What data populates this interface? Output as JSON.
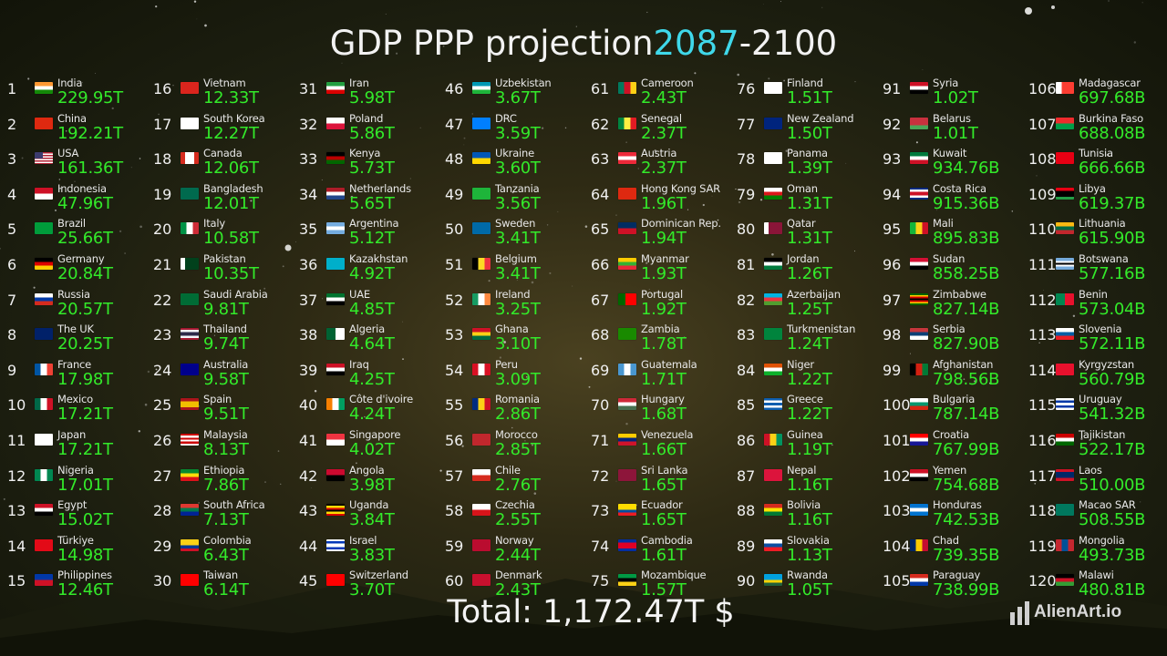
{
  "title": {
    "prefix": "GDP PPP projection",
    "year": "2087",
    "suffix": "-2100"
  },
  "total": "Total: 1,172.47T $",
  "logo": "AlienArt.io",
  "countries": [
    {
      "r": "1",
      "n": "India",
      "v": "229.95T",
      "f": "h:#ff9933,#ffffff,#138808"
    },
    {
      "r": "2",
      "n": "China",
      "v": "192.21T",
      "f": "s:#de2910"
    },
    {
      "r": "3",
      "n": "USA",
      "v": "161.36T",
      "f": "us"
    },
    {
      "r": "4",
      "n": "Indonesia",
      "v": "47.96T",
      "f": "h:#ce1126,#ffffff"
    },
    {
      "r": "5",
      "n": "Brazil",
      "v": "25.66T",
      "f": "s:#009c3b"
    },
    {
      "r": "6",
      "n": "Germany",
      "v": "20.84T",
      "f": "h:#000000,#dd0000,#ffce00"
    },
    {
      "r": "7",
      "n": "Russia",
      "v": "20.57T",
      "f": "h:#ffffff,#0039a6,#d52b1e"
    },
    {
      "r": "8",
      "n": "The UK",
      "v": "20.25T",
      "f": "s:#012169"
    },
    {
      "r": "9",
      "n": "France",
      "v": "17.98T",
      "f": "v:#0055a4,#ffffff,#ef4135"
    },
    {
      "r": "10",
      "n": "Mexico",
      "v": "17.21T",
      "f": "v:#006847,#ffffff,#ce1126"
    },
    {
      "r": "11",
      "n": "Japan",
      "v": "17.21T",
      "f": "s:#ffffff"
    },
    {
      "r": "12",
      "n": "Nigeria",
      "v": "17.01T",
      "f": "v:#008751,#ffffff,#008751"
    },
    {
      "r": "13",
      "n": "Egypt",
      "v": "15.02T",
      "f": "h:#ce1126,#ffffff,#000000"
    },
    {
      "r": "14",
      "n": "Türkiye",
      "v": "14.98T",
      "f": "s:#e30a17"
    },
    {
      "r": "15",
      "n": "Philippines",
      "v": "12.46T",
      "f": "h:#0038a8,#ce1126"
    },
    {
      "r": "16",
      "n": "Vietnam",
      "v": "12.33T",
      "f": "s:#da251d"
    },
    {
      "r": "17",
      "n": "South Korea",
      "v": "12.27T",
      "f": "s:#ffffff"
    },
    {
      "r": "18",
      "n": "Canada",
      "v": "12.06T",
      "f": "v:#d52b1e,#ffffff,#ffffff,#d52b1e"
    },
    {
      "r": "19",
      "n": "Bangladesh",
      "v": "12.01T",
      "f": "s:#006a4e"
    },
    {
      "r": "20",
      "n": "Italy",
      "v": "10.58T",
      "f": "v:#009246,#ffffff,#ce2b37"
    },
    {
      "r": "21",
      "n": "Pakistan",
      "v": "10.35T",
      "f": "v:#ffffff,#01411c,#01411c,#01411c"
    },
    {
      "r": "22",
      "n": "Saudi Arabia",
      "v": "9.81T",
      "f": "s:#006c35"
    },
    {
      "r": "23",
      "n": "Thailand",
      "v": "9.74T",
      "f": "h:#a51931,#f4f5f8,#2d2a4a,#2d2a4a,#f4f5f8,#a51931"
    },
    {
      "r": "24",
      "n": "Australia",
      "v": "9.58T",
      "f": "s:#00008b"
    },
    {
      "r": "25",
      "n": "Spain",
      "v": "9.51T",
      "f": "h:#aa151b,#f1bf00,#f1bf00,#aa151b"
    },
    {
      "r": "26",
      "n": "Malaysia",
      "v": "8.13T",
      "f": "h:#cc0001,#ffffff,#cc0001,#ffffff,#cc0001,#ffffff"
    },
    {
      "r": "27",
      "n": "Ethiopia",
      "v": "7.86T",
      "f": "h:#078930,#fcdd09,#da121a"
    },
    {
      "r": "28",
      "n": "South Africa",
      "v": "7.13T",
      "f": "h:#de3831,#007a4d,#002395"
    },
    {
      "r": "29",
      "n": "Colombia",
      "v": "6.43T",
      "f": "h:#fcd116,#fcd116,#003893,#ce1126"
    },
    {
      "r": "30",
      "n": "Taiwan",
      "v": "6.14T",
      "f": "s:#fe0000"
    },
    {
      "r": "31",
      "n": "Iran",
      "v": "5.98T",
      "f": "h:#239f40,#ffffff,#da0000"
    },
    {
      "r": "32",
      "n": "Poland",
      "v": "5.86T",
      "f": "h:#ffffff,#dc143c"
    },
    {
      "r": "33",
      "n": "Kenya",
      "v": "5.73T",
      "f": "h:#000000,#bb0000,#006600"
    },
    {
      "r": "34",
      "n": "Netherlands",
      "v": "5.65T",
      "f": "h:#ae1c28,#ffffff,#21468b"
    },
    {
      "r": "35",
      "n": "Argentina",
      "v": "5.12T",
      "f": "h:#74acdf,#ffffff,#74acdf"
    },
    {
      "r": "36",
      "n": "Kazakhstan",
      "v": "4.92T",
      "f": "s:#00afca"
    },
    {
      "r": "37",
      "n": "UAE",
      "v": "4.85T",
      "f": "h:#00732f,#ffffff,#000000"
    },
    {
      "r": "38",
      "n": "Algeria",
      "v": "4.64T",
      "f": "v:#006233,#ffffff"
    },
    {
      "r": "39",
      "n": "Iraq",
      "v": "4.25T",
      "f": "h:#ce1126,#ffffff,#000000"
    },
    {
      "r": "40",
      "n": "Côte d'ivoire",
      "v": "4.24T",
      "f": "v:#f77f00,#ffffff,#009e60"
    },
    {
      "r": "41",
      "n": "Singapore",
      "v": "4.02T",
      "f": "h:#ef3340,#ffffff"
    },
    {
      "r": "42",
      "n": "Angola",
      "v": "3.98T",
      "f": "h:#cc092f,#000000"
    },
    {
      "r": "43",
      "n": "Uganda",
      "v": "3.84T",
      "f": "h:#000000,#fcdc04,#d90000,#000000,#fcdc04,#d90000"
    },
    {
      "r": "44",
      "n": "Israel",
      "v": "3.83T",
      "f": "h:#ffffff,#0038b8,#ffffff,#ffffff,#0038b8,#ffffff"
    },
    {
      "r": "45",
      "n": "Switzerland",
      "v": "3.70T",
      "f": "s:#ff0000"
    },
    {
      "r": "46",
      "n": "Uzbekistan",
      "v": "3.67T",
      "f": "h:#0099b5,#ffffff,#1eb53a"
    },
    {
      "r": "47",
      "n": "DRC",
      "v": "3.59T",
      "f": "s:#007fff"
    },
    {
      "r": "48",
      "n": "Ukraine",
      "v": "3.60T",
      "f": "h:#0057b7,#ffd700"
    },
    {
      "r": "49",
      "n": "Tanzania",
      "v": "3.56T",
      "f": "s:#1eb53a"
    },
    {
      "r": "50",
      "n": "Sweden",
      "v": "3.41T",
      "f": "s:#006aa7"
    },
    {
      "r": "51",
      "n": "Belgium",
      "v": "3.41T",
      "f": "v:#000000,#fdda24,#ef3340"
    },
    {
      "r": "52",
      "n": "Ireland",
      "v": "3.25T",
      "f": "v:#169b62,#ffffff,#ff883e"
    },
    {
      "r": "53",
      "n": "Ghana",
      "v": "3.10T",
      "f": "h:#ce1126,#fcd116,#006b3f"
    },
    {
      "r": "54",
      "n": "Peru",
      "v": "3.09T",
      "f": "v:#d91023,#ffffff,#d91023"
    },
    {
      "r": "55",
      "n": "Romania",
      "v": "2.86T",
      "f": "v:#002b7f,#fcd116,#ce1126"
    },
    {
      "r": "56",
      "n": "Morocco",
      "v": "2.85T",
      "f": "s:#c1272d"
    },
    {
      "r": "57",
      "n": "Chile",
      "v": "2.76T",
      "f": "h:#ffffff,#d52b1e"
    },
    {
      "r": "58",
      "n": "Czechia",
      "v": "2.55T",
      "f": "h:#ffffff,#d7141a"
    },
    {
      "r": "59",
      "n": "Norway",
      "v": "2.44T",
      "f": "s:#ba0c2f"
    },
    {
      "r": "60",
      "n": "Denmark",
      "v": "2.43T",
      "f": "s:#c8102e"
    },
    {
      "r": "61",
      "n": "Cameroon",
      "v": "2.43T",
      "f": "v:#007a5e,#ce1126,#fcd116"
    },
    {
      "r": "62",
      "n": "Senegal",
      "v": "2.37T",
      "f": "v:#00853f,#fdef42,#e31b23"
    },
    {
      "r": "63",
      "n": "Austria",
      "v": "2.37T",
      "f": "h:#ed2939,#ffffff,#ed2939"
    },
    {
      "r": "64",
      "n": "Hong Kong SAR",
      "v": "1.96T",
      "f": "s:#de2910"
    },
    {
      "r": "65",
      "n": "Dominican Rep.",
      "v": "1.94T",
      "f": "h:#002d62,#ce1126"
    },
    {
      "r": "66",
      "n": "Myanmar",
      "v": "1.93T",
      "f": "h:#fecb00,#34b233,#ea2839"
    },
    {
      "r": "67",
      "n": "Portugal",
      "v": "1.92T",
      "f": "v:#006600,#006600,#ff0000,#ff0000,#ff0000"
    },
    {
      "r": "68",
      "n": "Zambia",
      "v": "1.78T",
      "f": "s:#198a00"
    },
    {
      "r": "69",
      "n": "Guatemala",
      "v": "1.71T",
      "f": "v:#4997d0,#ffffff,#4997d0"
    },
    {
      "r": "70",
      "n": "Hungary",
      "v": "1.68T",
      "f": "h:#ce2939,#ffffff,#477050"
    },
    {
      "r": "71",
      "n": "Venezuela",
      "v": "1.66T",
      "f": "h:#ffcc00,#00247d,#cf142b"
    },
    {
      "r": "72",
      "n": "Sri Lanka",
      "v": "1.65T",
      "f": "s:#8d153a"
    },
    {
      "r": "73",
      "n": "Ecuador",
      "v": "1.65T",
      "f": "h:#ffdd00,#ffdd00,#034ea2,#ed1c24"
    },
    {
      "r": "74",
      "n": "Cambodia",
      "v": "1.61T",
      "f": "h:#032ea1,#e00025,#e00025,#032ea1"
    },
    {
      "r": "75",
      "n": "Mozambique",
      "v": "1.57T",
      "f": "h:#009a44,#000000,#fcd116"
    },
    {
      "r": "76",
      "n": "Finland",
      "v": "1.51T",
      "f": "s:#ffffff"
    },
    {
      "r": "77",
      "n": "New Zealand",
      "v": "1.50T",
      "f": "s:#00247d"
    },
    {
      "r": "78",
      "n": "Panama",
      "v": "1.39T",
      "f": "s:#ffffff"
    },
    {
      "r": "79",
      "n": "Oman",
      "v": "1.31T",
      "f": "h:#ffffff,#db161b,#008000"
    },
    {
      "r": "80",
      "n": "Qatar",
      "v": "1.31T",
      "f": "v:#ffffff,#8a1538,#8a1538,#8a1538"
    },
    {
      "r": "81",
      "n": "Jordan",
      "v": "1.26T",
      "f": "h:#000000,#ffffff,#007a3d"
    },
    {
      "r": "82",
      "n": "Azerbaijan",
      "v": "1.25T",
      "f": "h:#00b5e2,#ef3340,#509e2f"
    },
    {
      "r": "83",
      "n": "Turkmenistan",
      "v": "1.24T",
      "f": "s:#00843d"
    },
    {
      "r": "84",
      "n": "Niger",
      "v": "1.22T",
      "f": "h:#e05206,#ffffff,#0db02b"
    },
    {
      "r": "85",
      "n": "Greece",
      "v": "1.22T",
      "f": "h:#0d5eaf,#ffffff,#0d5eaf,#ffffff,#0d5eaf"
    },
    {
      "r": "86",
      "n": "Guinea",
      "v": "1.19T",
      "f": "v:#ce1126,#fcd116,#009460"
    },
    {
      "r": "87",
      "n": "Nepal",
      "v": "1.16T",
      "f": "s:#dc143c"
    },
    {
      "r": "88",
      "n": "Bolivia",
      "v": "1.16T",
      "f": "h:#d52b1e,#f9e300,#007934"
    },
    {
      "r": "89",
      "n": "Slovakia",
      "v": "1.13T",
      "f": "h:#ffffff,#0b4ea2,#ee1c25"
    },
    {
      "r": "90",
      "n": "Rwanda",
      "v": "1.05T",
      "f": "h:#00a1de,#00a1de,#fad201,#20603d"
    },
    {
      "r": "91",
      "n": "Syria",
      "v": "1.02T",
      "f": "h:#ce1126,#ffffff,#000000"
    },
    {
      "r": "92",
      "n": "Belarus",
      "v": "1.01T",
      "f": "h:#c8313e,#c8313e,#4aa657"
    },
    {
      "r": "93",
      "n": "Kuwait",
      "v": "934.76B",
      "f": "h:#007a3d,#ffffff,#ce1126"
    },
    {
      "r": "94",
      "n": "Costa Rica",
      "v": "915.36B",
      "f": "h:#002b7f,#ffffff,#ce1126,#ce1126,#ffffff,#002b7f"
    },
    {
      "r": "95",
      "n": "Mali",
      "v": "895.83B",
      "f": "v:#14b53a,#fcd116,#ce1126"
    },
    {
      "r": "96",
      "n": "Sudan",
      "v": "858.25B",
      "f": "h:#d21034,#ffffff,#000000"
    },
    {
      "r": "97",
      "n": "Zimbabwe",
      "v": "827.14B",
      "f": "h:#006400,#ffd200,#d40000,#000000,#d40000,#ffd200,#006400"
    },
    {
      "r": "98",
      "n": "Serbia",
      "v": "827.90B",
      "f": "h:#c6363c,#0c4076,#ffffff"
    },
    {
      "r": "99",
      "n": "Afghanistan",
      "v": "798.56B",
      "f": "v:#000000,#d32011,#007a36"
    },
    {
      "r": "100",
      "n": "Bulgaria",
      "v": "787.14B",
      "f": "h:#ffffff,#00966e,#d62612"
    },
    {
      "r": "101",
      "n": "Croatia",
      "v": "767.99B",
      "f": "h:#ff0000,#ffffff,#171796"
    },
    {
      "r": "102",
      "n": "Yemen",
      "v": "754.68B",
      "f": "h:#ce1126,#ffffff,#000000"
    },
    {
      "r": "103",
      "n": "Honduras",
      "v": "742.53B",
      "f": "h:#0073cf,#ffffff,#0073cf"
    },
    {
      "r": "104",
      "n": "Chad",
      "v": "739.35B",
      "f": "v:#002664,#fecb00,#c60c30"
    },
    {
      "r": "105",
      "n": "Paraguay",
      "v": "738.99B",
      "f": "h:#d52b1e,#ffffff,#0038a8"
    },
    {
      "r": "106",
      "n": "Madagascar",
      "v": "697.68B",
      "f": "v:#ffffff,#fc3d32,#fc3d32"
    },
    {
      "r": "107",
      "n": "Burkina Faso",
      "v": "688.08B",
      "f": "h:#ef2b2d,#009e49"
    },
    {
      "r": "108",
      "n": "Tunisia",
      "v": "666.66B",
      "f": "s:#e70013"
    },
    {
      "r": "109",
      "n": "Libya",
      "v": "619.37B",
      "f": "h:#e70013,#000000,#000000,#239e46"
    },
    {
      "r": "110",
      "n": "Lithuania",
      "v": "615.90B",
      "f": "h:#fdb913,#006a44,#c1272d"
    },
    {
      "r": "111",
      "n": "Botswana",
      "v": "577.16B",
      "f": "h:#75aadb,#75aadb,#ffffff,#000000,#ffffff,#75aadb,#75aadb"
    },
    {
      "r": "112",
      "n": "Benin",
      "v": "573.04B",
      "f": "v:#008751,#e8112d"
    },
    {
      "r": "113",
      "n": "Slovenia",
      "v": "572.11B",
      "f": "h:#ffffff,#005da4,#ed1c24"
    },
    {
      "r": "114",
      "n": "Kyrgyzstan",
      "v": "560.79B",
      "f": "s:#e8112d"
    },
    {
      "r": "115",
      "n": "Uruguay",
      "v": "541.32B",
      "f": "h:#ffffff,#0038a8,#ffffff,#0038a8,#ffffff"
    },
    {
      "r": "116",
      "n": "Tajikistan",
      "v": "522.17B",
      "f": "h:#cc0000,#ffffff,#006600"
    },
    {
      "r": "117",
      "n": "Laos",
      "v": "510.00B",
      "f": "h:#ce1126,#002868,#002868,#ce1126"
    },
    {
      "r": "118",
      "n": "Macao SAR",
      "v": "508.55B",
      "f": "s:#00785e"
    },
    {
      "r": "119",
      "n": "Mongolia",
      "v": "493.73B",
      "f": "v:#c4272f,#015197,#c4272f"
    },
    {
      "r": "120",
      "n": "Malawi",
      "v": "480.81B",
      "f": "h:#000000,#ce1126,#339e35"
    }
  ]
}
